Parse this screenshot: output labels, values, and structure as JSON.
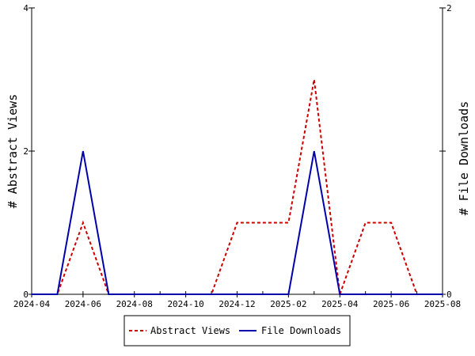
{
  "chart_data": {
    "type": "line",
    "x_axis": {
      "start": "2024-04",
      "end": "2025-08",
      "tick_labels": [
        "2024-04",
        "2024-06",
        "2024-08",
        "2024-10",
        "2024-12",
        "2025-02",
        "2025-04",
        "2025-06",
        "2025-08"
      ]
    },
    "y_left": {
      "label": "# Abstract Views",
      "ylim": [
        0,
        4
      ],
      "tick_labels": [
        "0",
        "2",
        "4"
      ]
    },
    "y_right": {
      "label": "# File Downloads",
      "ylim": [
        0,
        2
      ],
      "tick_labels": [
        "0",
        "1",
        "2"
      ]
    },
    "x": [
      "2024-04",
      "2024-05",
      "2024-06",
      "2024-07",
      "2024-08",
      "2024-09",
      "2024-10",
      "2024-11",
      "2024-12",
      "2025-01",
      "2025-02",
      "2025-03",
      "2025-04",
      "2025-05",
      "2025-06",
      "2025-07",
      "2025-08"
    ],
    "series": [
      {
        "name": "Abstract Views",
        "axis": "left",
        "color": "#cc0000",
        "dash": true,
        "values": [
          0,
          0,
          1,
          0,
          0,
          0,
          0,
          0,
          1,
          1,
          1,
          3,
          0,
          1,
          1,
          0,
          0
        ]
      },
      {
        "name": "File Downloads",
        "axis": "right",
        "color": "#0000aa",
        "dash": false,
        "values": [
          0,
          0,
          1,
          0,
          0,
          0,
          0,
          0,
          0,
          0,
          0,
          1,
          0,
          0,
          0,
          0,
          0
        ]
      }
    ],
    "grid": false,
    "legend": "bottom"
  }
}
